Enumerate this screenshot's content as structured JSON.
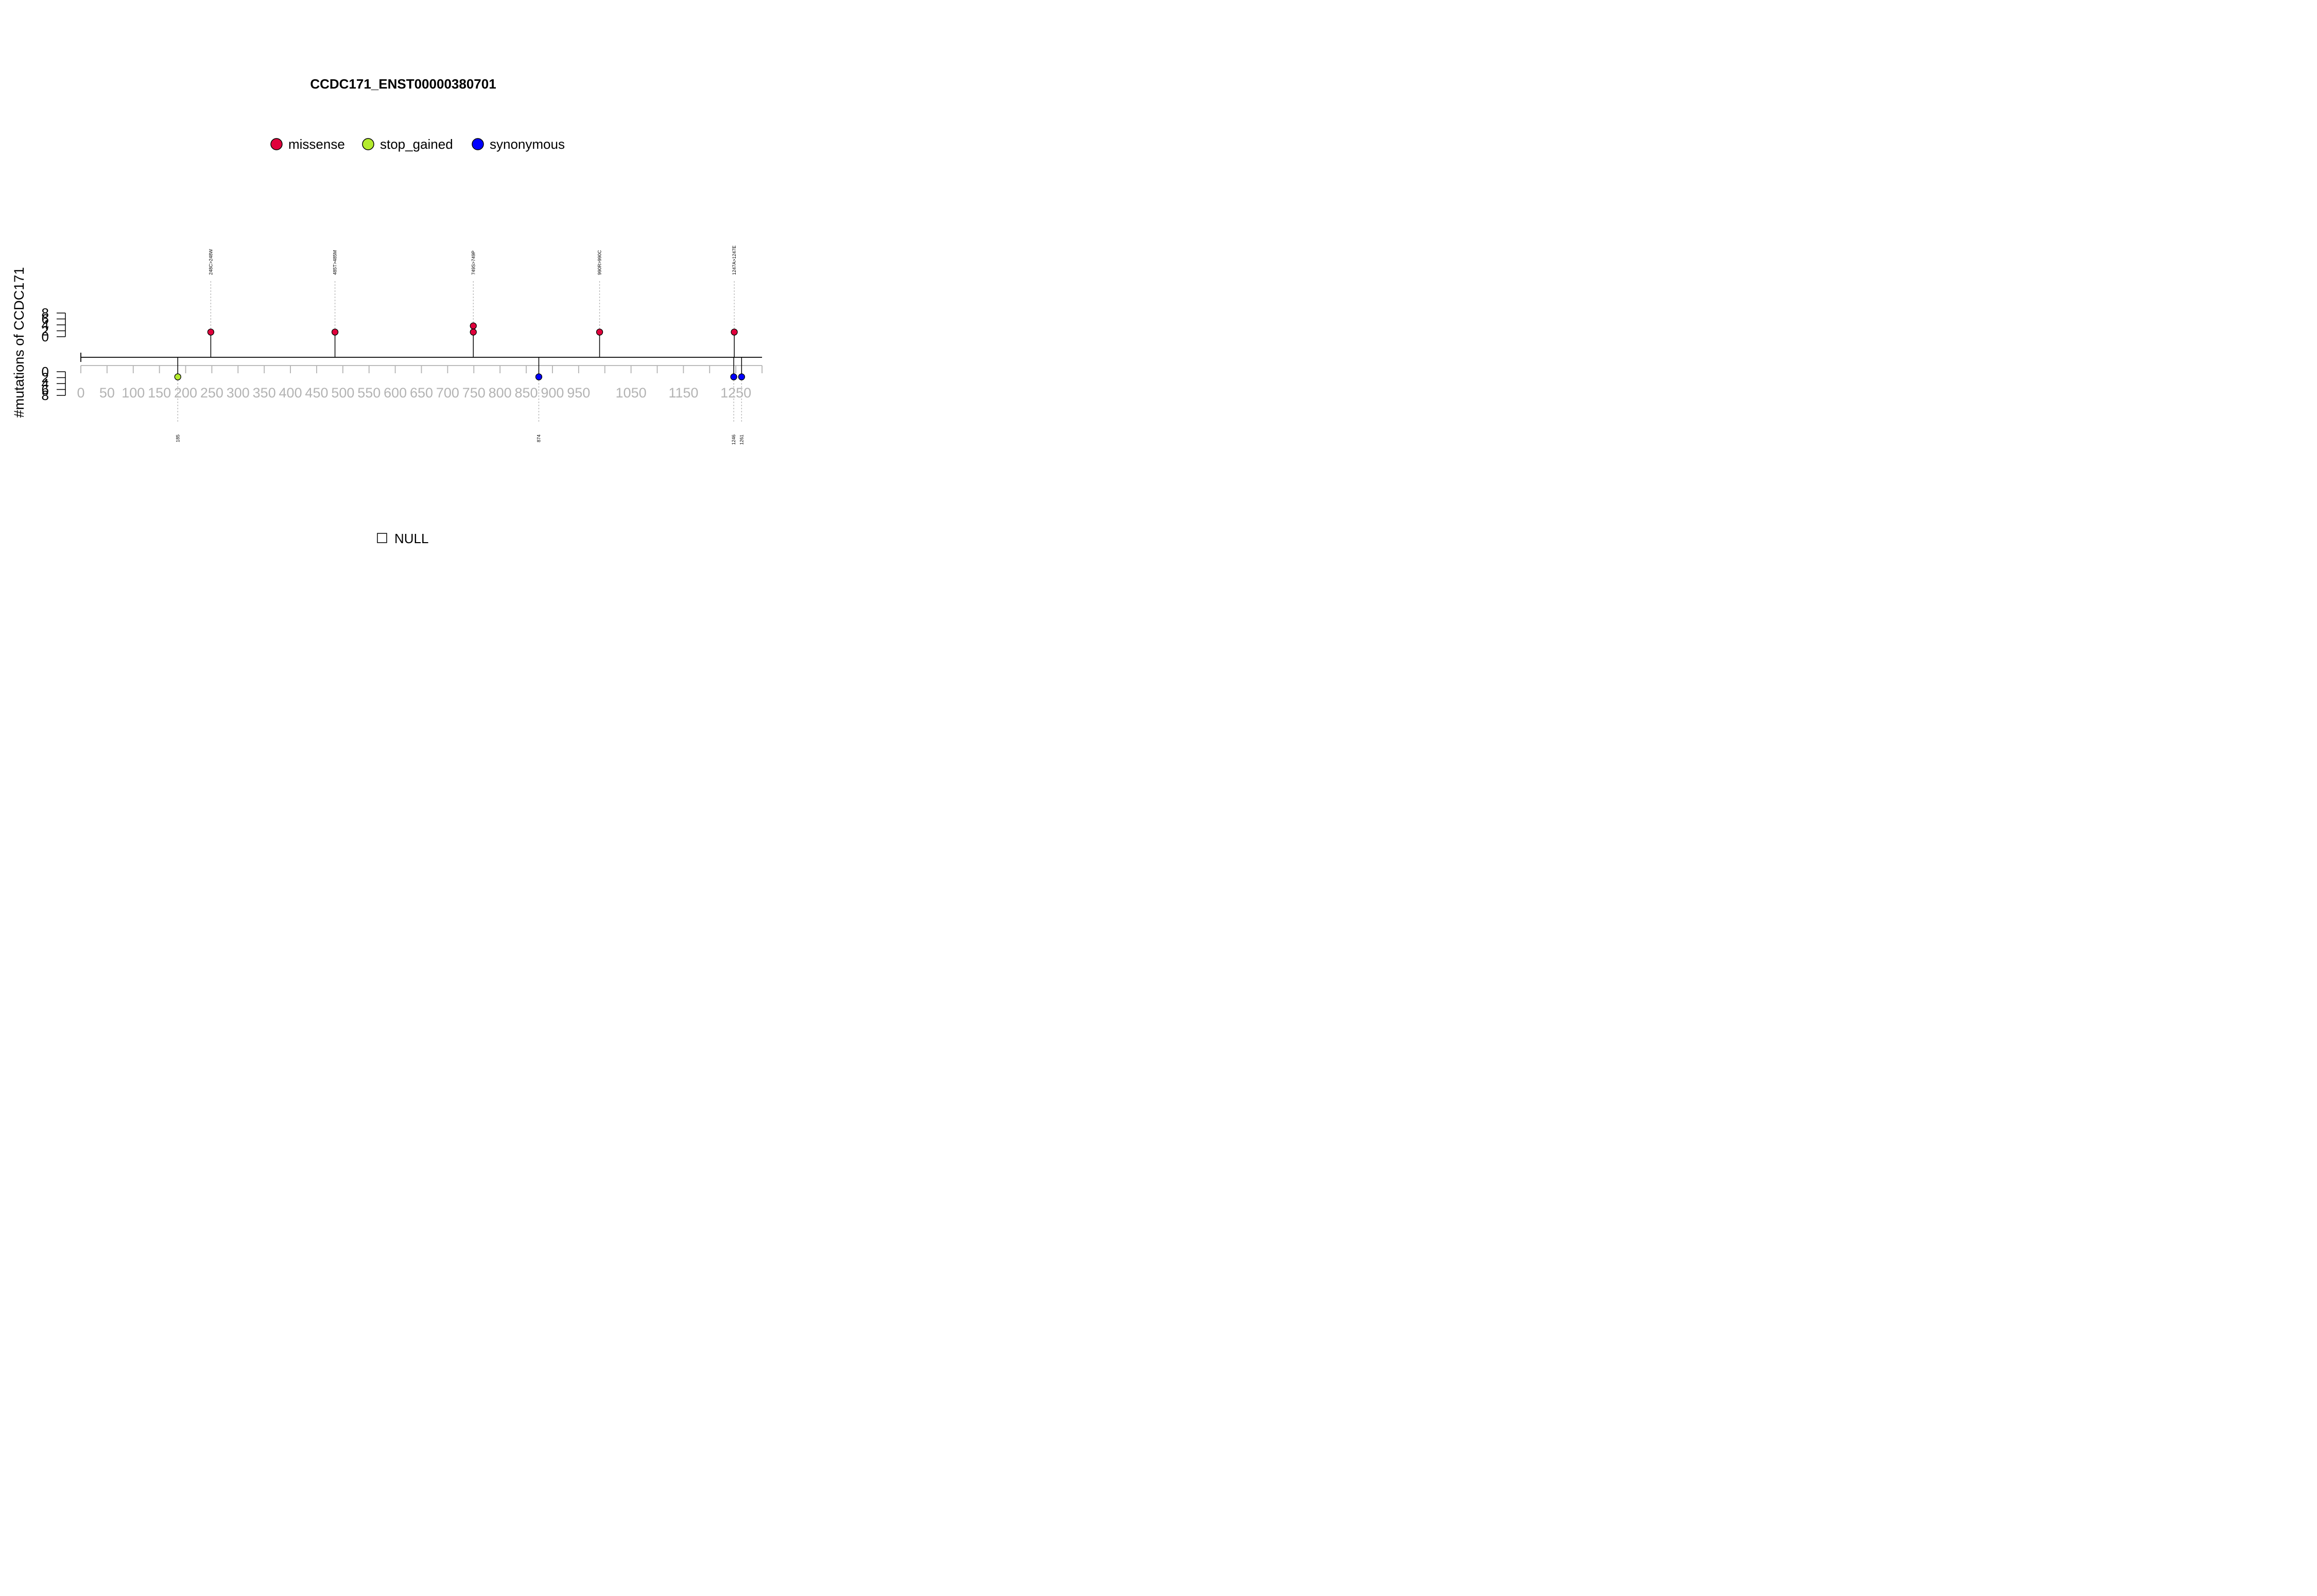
{
  "chart_data": {
    "type": "lollipop",
    "title": "CCDC171_ENST00000380701",
    "ylabel": "#mutations of CCDC171",
    "x_ticks": [
      "0",
      "50",
      "100",
      "150",
      "200",
      "250",
      "300",
      "350",
      "400",
      "450",
      "500",
      "550",
      "600",
      "650",
      "700",
      "750",
      "800",
      "850",
      "900",
      "950",
      "1050",
      "1150",
      "1250"
    ],
    "xlim": [
      0,
      1300
    ],
    "y_ticks": [
      "8",
      "6",
      "4",
      "2",
      "0"
    ],
    "ylim": [
      0,
      8
    ],
    "legend": [
      {
        "label": "missense",
        "color": "#e0003c"
      },
      {
        "label": "stop_gained",
        "color": "#b4eb2d"
      },
      {
        "label": "synonymous",
        "color": "#0000ff"
      }
    ],
    "upper_mutations": [
      {
        "position": 248,
        "label": "248C>248W",
        "type": "missense",
        "count": 1
      },
      {
        "position": 485,
        "label": "485T>485M",
        "type": "missense",
        "count": 1
      },
      {
        "position": 749,
        "label": "749S>749P",
        "type": "missense",
        "count": 2
      },
      {
        "position": 990,
        "label": "990R>990C",
        "type": "missense",
        "count": 1
      },
      {
        "position": 1247,
        "label": "1247A>1247E",
        "type": "missense",
        "count": 1
      }
    ],
    "lower_mutations": [
      {
        "position": 185,
        "label": "185",
        "type": "stop_gained",
        "count": 1
      },
      {
        "position": 874,
        "label": "874",
        "type": "synonymous",
        "count": 1
      },
      {
        "position": 1246,
        "label": "1246",
        "type": "synonymous",
        "count": 1
      },
      {
        "position": 1261,
        "label": "1261",
        "type": "synonymous",
        "count": 1
      }
    ],
    "domain_legend": "NULL"
  }
}
